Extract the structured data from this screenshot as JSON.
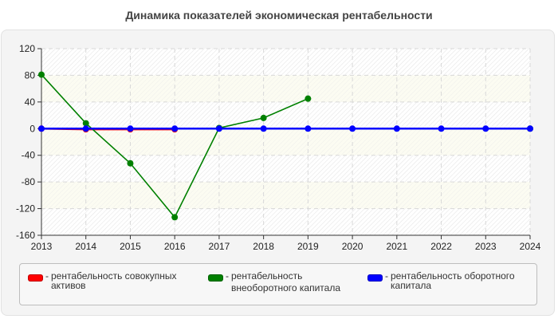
{
  "title": "Динамика показателей экономическая рентабельности",
  "chart_data": {
    "type": "line",
    "title": "Динамика показателей экономическая рентабельности",
    "xlabel": "",
    "ylabel": "",
    "x": [
      2013,
      2014,
      2015,
      2016,
      2017,
      2018,
      2019,
      2020,
      2021,
      2022,
      2023,
      2024
    ],
    "ylim": [
      -160,
      120
    ],
    "yticks": [
      120,
      80,
      40,
      0,
      -40,
      -80,
      -120,
      -160
    ],
    "grid": true,
    "legend_position": "bottom",
    "series": [
      {
        "name": "рентабельность совокупных активов",
        "color": "#ff0000",
        "x": [
          2013,
          2014,
          2015,
          2016
        ],
        "values": [
          0,
          -1,
          -1,
          -1
        ]
      },
      {
        "name": "рентабельность внеоборотного капитала",
        "color": "#008000",
        "x": [
          2013,
          2014,
          2015,
          2016,
          2017,
          2018,
          2019,
          2024
        ],
        "values": [
          81,
          8,
          -52,
          -133,
          1,
          16,
          45,
          0
        ]
      },
      {
        "name": "рентабельность оборотного капитала",
        "color": "#0000ff",
        "x": [
          2013,
          2014,
          2015,
          2016,
          2017,
          2018,
          2019,
          2020,
          2021,
          2022,
          2023,
          2024
        ],
        "values": [
          0,
          0,
          0,
          0,
          0,
          0,
          0,
          0,
          0,
          0,
          0,
          0
        ]
      }
    ]
  },
  "legend": {
    "items": [
      {
        "label_line1": "рентабельность совокупных",
        "label_line2": "активов",
        "color": "#ff0000"
      },
      {
        "label_line1": "рентабельность",
        "label_line2": "внеоборотного капитала",
        "color": "#008000"
      },
      {
        "label_line1": "рентабельность оборотного",
        "label_line2": "капитала",
        "color": "#0000ff"
      }
    ],
    "dash": "-"
  }
}
